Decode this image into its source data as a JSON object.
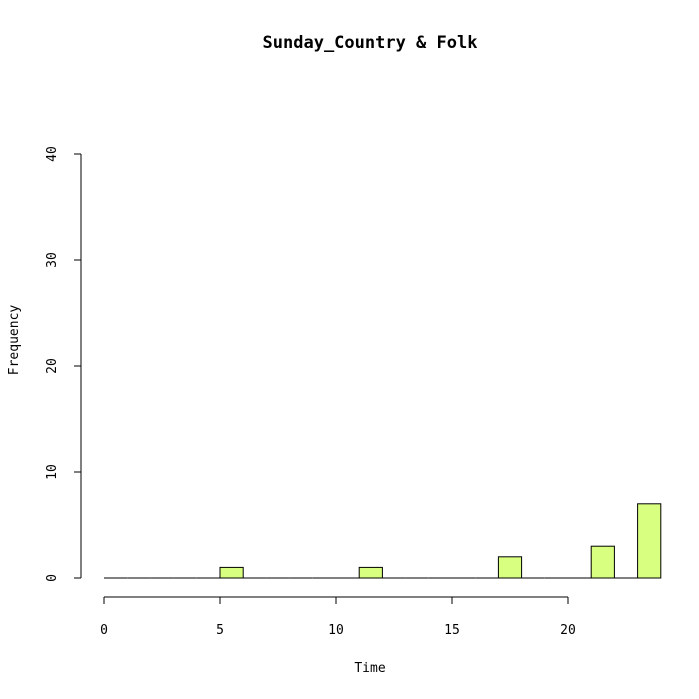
{
  "chart_data": {
    "type": "bar",
    "title": "Sunday_Country & Folk",
    "xlabel": "Time",
    "ylabel": "Frequency",
    "xlim": [
      0,
      23
    ],
    "ylim": [
      0,
      40
    ],
    "x_ticks": [
      0,
      5,
      10,
      15,
      20
    ],
    "y_ticks": [
      0,
      10,
      20,
      30,
      40
    ],
    "bin_width": 1,
    "bins": [
      {
        "start": 0,
        "count": 0
      },
      {
        "start": 1,
        "count": 0
      },
      {
        "start": 2,
        "count": 0
      },
      {
        "start": 3,
        "count": 0
      },
      {
        "start": 4,
        "count": 0
      },
      {
        "start": 5,
        "count": 1
      },
      {
        "start": 6,
        "count": 0
      },
      {
        "start": 7,
        "count": 0
      },
      {
        "start": 8,
        "count": 0
      },
      {
        "start": 9,
        "count": 0
      },
      {
        "start": 10,
        "count": 0
      },
      {
        "start": 11,
        "count": 1
      },
      {
        "start": 12,
        "count": 0
      },
      {
        "start": 13,
        "count": 0
      },
      {
        "start": 14,
        "count": 0
      },
      {
        "start": 15,
        "count": 0
      },
      {
        "start": 16,
        "count": 0
      },
      {
        "start": 17,
        "count": 2
      },
      {
        "start": 18,
        "count": 0
      },
      {
        "start": 19,
        "count": 0
      },
      {
        "start": 20,
        "count": 0
      },
      {
        "start": 21,
        "count": 3
      },
      {
        "start": 22,
        "count": 0
      },
      {
        "start": 23,
        "count": 7
      }
    ],
    "bar_color": "#d9ff80",
    "grid": false
  }
}
